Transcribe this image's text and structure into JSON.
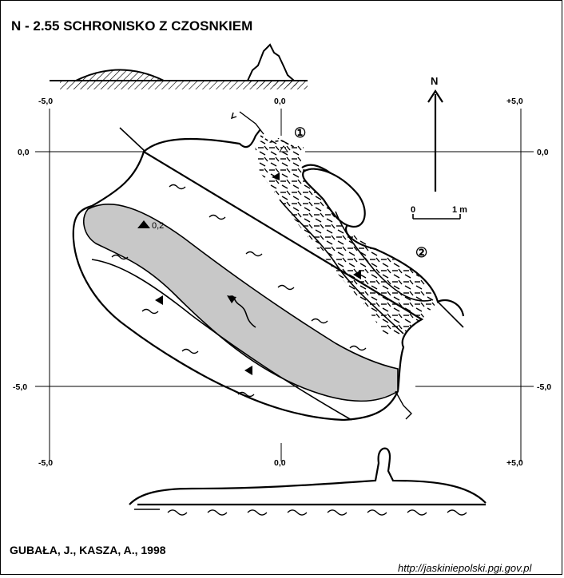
{
  "title": "N - 2.55  SCHRONISKO Z CZOSNKIEM",
  "author": "GUBAŁA, J., KASZA, A., 1998",
  "source_url": "http://jaskiniepolski.pgi.gov.pl",
  "north_label": "N",
  "scale": {
    "start": "0",
    "end": "1 m"
  },
  "grid_labels": {
    "top_left": "-5,0",
    "top_center": "0,0",
    "top_right": "+5,0",
    "bottom_left": "-5,0",
    "bottom_center": "0,0",
    "bottom_right": "+5,0",
    "left_upper": "0,0",
    "right_upper": "0,0",
    "left_lower": "-5,0",
    "right_lower": "-5,0"
  },
  "entrance_labels": [
    "①",
    "②"
  ],
  "height_marker": "0,2"
}
